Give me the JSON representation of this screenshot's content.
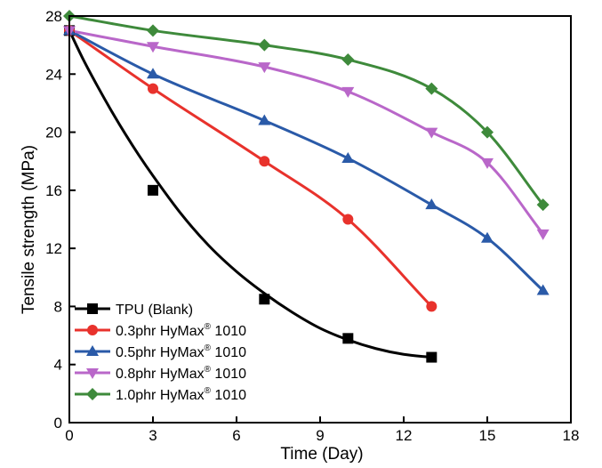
{
  "chart_data": {
    "type": "line",
    "title": "",
    "xlabel": "Time (Day)",
    "ylabel": "Tensile strength (MPa)",
    "xlim": [
      0,
      18
    ],
    "ylim": [
      0,
      28
    ],
    "xticks": [
      0,
      3,
      6,
      9,
      12,
      15,
      18
    ],
    "yticks": [
      0,
      4,
      8,
      12,
      16,
      20,
      24,
      28
    ],
    "legend_position": "bottom-left",
    "series": [
      {
        "name": "TPU (Blank)",
        "legend_base": "TPU (Blank)",
        "legend_sup": "",
        "legend_suffix": "",
        "color": "#000000",
        "marker": "square",
        "x": [
          0,
          3,
          7,
          10,
          13
        ],
        "y": [
          27.0,
          16.0,
          8.5,
          5.8,
          4.5
        ],
        "curve": [
          [
            0,
            27.0
          ],
          [
            0.5,
            25.0
          ],
          [
            1,
            23.2
          ],
          [
            1.5,
            21.5
          ],
          [
            2,
            19.9
          ],
          [
            2.5,
            18.4
          ],
          [
            3,
            17.0
          ],
          [
            4,
            14.4
          ],
          [
            5,
            12.2
          ],
          [
            6,
            10.4
          ],
          [
            7,
            8.9
          ],
          [
            8,
            7.6
          ],
          [
            9,
            6.5
          ],
          [
            10,
            5.7
          ],
          [
            11,
            5.1
          ],
          [
            12,
            4.7
          ],
          [
            13,
            4.5
          ]
        ]
      },
      {
        "name": "0.3phr HyMax® 1010",
        "legend_base": "0.3phr HyMax",
        "legend_sup": "®",
        "legend_suffix": " 1010",
        "color": "#e8322c",
        "marker": "circle",
        "x": [
          0,
          3,
          7,
          10,
          13
        ],
        "y": [
          27.0,
          23.0,
          18.0,
          14.0,
          8.0
        ]
      },
      {
        "name": "0.5phr HyMax® 1010",
        "legend_base": "0.5phr HyMax",
        "legend_sup": "®",
        "legend_suffix": " 1010",
        "color": "#2a5aa8",
        "marker": "triangle-up",
        "x": [
          0,
          3,
          7,
          10,
          13,
          15,
          17
        ],
        "y": [
          27.0,
          24.0,
          20.8,
          18.2,
          15.0,
          12.7,
          9.1
        ]
      },
      {
        "name": "0.8phr HyMax® 1010",
        "legend_base": "0.8phr HyMax",
        "legend_sup": "®",
        "legend_suffix": " 1010",
        "color": "#b967c9",
        "marker": "triangle-down",
        "x": [
          0,
          3,
          7,
          10,
          13,
          15,
          17
        ],
        "y": [
          27.0,
          25.9,
          24.5,
          22.8,
          20.0,
          17.9,
          13.0
        ]
      },
      {
        "name": "1.0phr HyMax® 1010",
        "legend_base": "1.0phr HyMax",
        "legend_sup": "®",
        "legend_suffix": " 1010",
        "color": "#3e8a3b",
        "marker": "diamond",
        "x": [
          0,
          3,
          7,
          10,
          13,
          15,
          17
        ],
        "y": [
          28.0,
          27.0,
          26.0,
          25.0,
          23.0,
          20.0,
          15.0
        ]
      }
    ]
  }
}
